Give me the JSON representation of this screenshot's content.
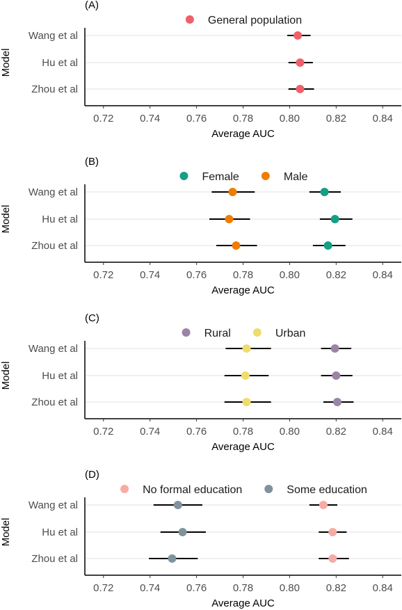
{
  "chart_data": [
    {
      "panel": "(A)",
      "type": "scatter",
      "xlabel": "Average AUC",
      "ylabel": "Model",
      "xlim": [
        0.712,
        0.848
      ],
      "xticks": [
        "0.72",
        "0.74",
        "0.76",
        "0.78",
        "0.80",
        "0.82",
        "0.84"
      ],
      "categories": [
        "Wang et al",
        "Hu et al",
        "Zhou et al"
      ],
      "legend_position": "top",
      "grid": "horizontal",
      "series": [
        {
          "name": "General population",
          "color": "#f0606a",
          "values": [
            0.8035,
            0.8045,
            0.8045
          ],
          "lower": [
            0.799,
            0.7995,
            0.7995
          ],
          "upper": [
            0.809,
            0.81,
            0.8105
          ]
        }
      ]
    },
    {
      "panel": "(B)",
      "type": "scatter",
      "xlabel": "Average AUC",
      "ylabel": "Model",
      "xlim": [
        0.712,
        0.848
      ],
      "xticks": [
        "0.72",
        "0.74",
        "0.76",
        "0.78",
        "0.80",
        "0.82",
        "0.84"
      ],
      "categories": [
        "Wang et al",
        "Hu et al",
        "Zhou et al"
      ],
      "legend_position": "top",
      "grid": "horizontal",
      "series": [
        {
          "name": "Female",
          "color": "#13a085",
          "values": [
            0.815,
            0.8195,
            0.8165
          ],
          "lower": [
            0.8085,
            0.813,
            0.81
          ],
          "upper": [
            0.822,
            0.827,
            0.824
          ]
        },
        {
          "name": "Male",
          "color": "#f07d00",
          "values": [
            0.7755,
            0.774,
            0.777
          ],
          "lower": [
            0.7665,
            0.7655,
            0.7685
          ],
          "upper": [
            0.785,
            0.783,
            0.786
          ]
        }
      ]
    },
    {
      "panel": "(C)",
      "type": "scatter",
      "xlabel": "Average AUC",
      "ylabel": "Model",
      "xlim": [
        0.712,
        0.848
      ],
      "xticks": [
        "0.72",
        "0.74",
        "0.76",
        "0.78",
        "0.80",
        "0.82",
        "0.84"
      ],
      "categories": [
        "Wang et al",
        "Hu et al",
        "Zhou et al"
      ],
      "legend_position": "top",
      "grid": "horizontal",
      "series": [
        {
          "name": "Rural",
          "color": "#9b84a6",
          "values": [
            0.8195,
            0.82,
            0.8205
          ],
          "lower": [
            0.8135,
            0.8135,
            0.8145
          ],
          "upper": [
            0.8265,
            0.827,
            0.8275
          ]
        },
        {
          "name": "Urban",
          "color": "#f0dc6a",
          "values": [
            0.7815,
            0.781,
            0.7815
          ],
          "lower": [
            0.7725,
            0.772,
            0.772
          ],
          "upper": [
            0.792,
            0.791,
            0.792
          ]
        }
      ]
    },
    {
      "panel": "(D)",
      "type": "scatter",
      "xlabel": "Average AUC",
      "ylabel": "Model",
      "xlim": [
        0.712,
        0.848
      ],
      "xticks": [
        "0.72",
        "0.74",
        "0.76",
        "0.78",
        "0.80",
        "0.82",
        "0.84"
      ],
      "categories": [
        "Wang et al",
        "Hu et al",
        "Zhou et al"
      ],
      "legend_position": "top",
      "grid": "horizontal",
      "series": [
        {
          "name": "No formal education",
          "color": "#f7aba3",
          "values": [
            0.8145,
            0.8185,
            0.8185
          ],
          "lower": [
            0.8085,
            0.8125,
            0.8125
          ],
          "upper": [
            0.8205,
            0.8245,
            0.8255
          ]
        },
        {
          "name": "Some education",
          "color": "#7f939c",
          "values": [
            0.752,
            0.754,
            0.7495
          ],
          "lower": [
            0.7415,
            0.7445,
            0.7395
          ],
          "upper": [
            0.7625,
            0.764,
            0.7605
          ]
        }
      ]
    }
  ]
}
